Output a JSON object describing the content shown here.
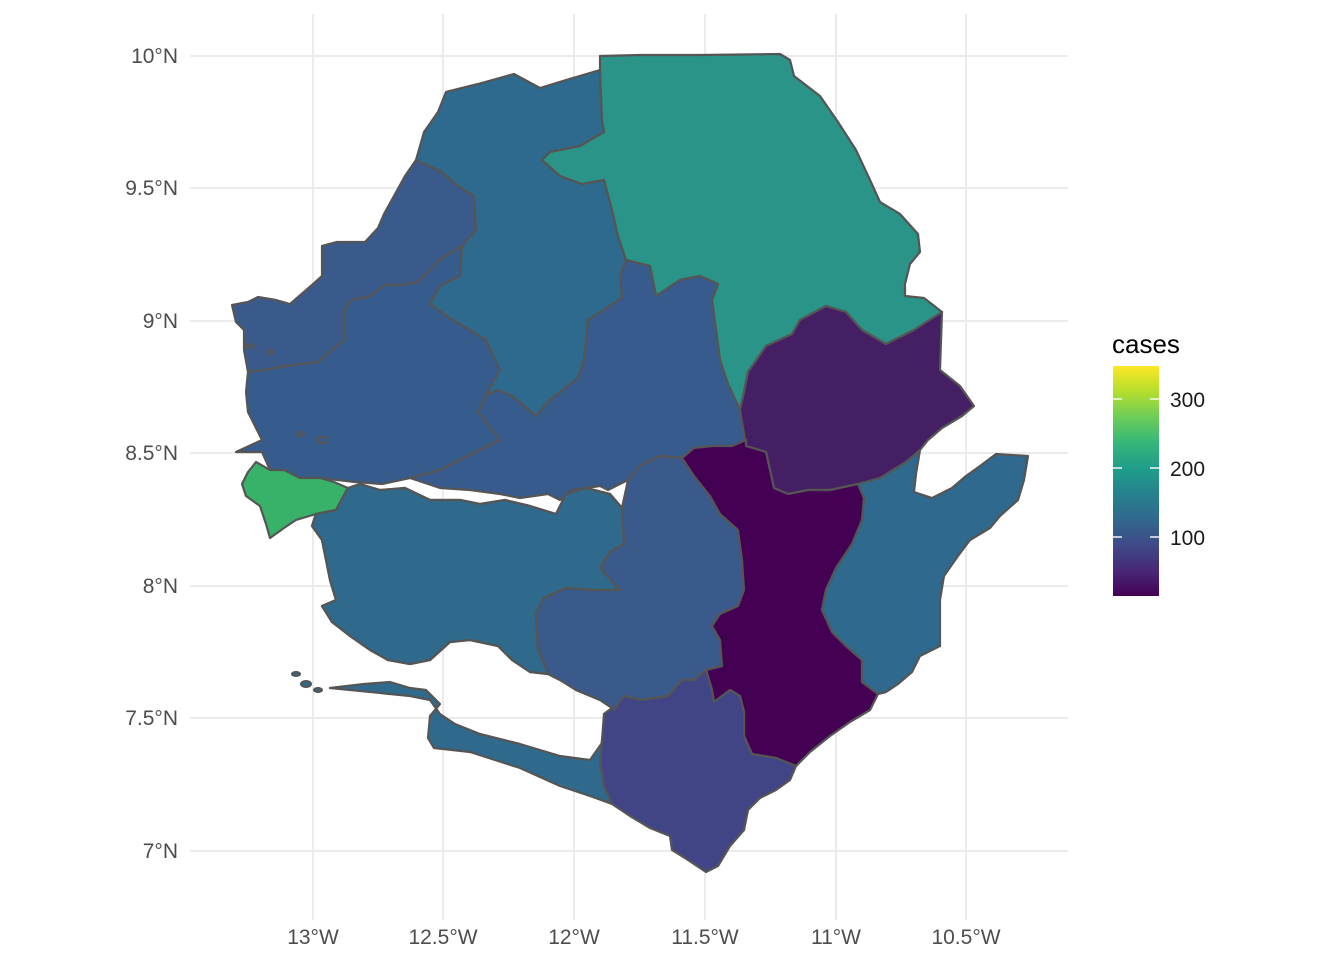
{
  "map": {
    "x_ticks": [
      "13°W",
      "12.5°W",
      "12°W",
      "11.5°W",
      "11°W",
      "10.5°W"
    ],
    "y_ticks": [
      "10°N",
      "9.5°N",
      "9°N",
      "8.5°N",
      "8°N",
      "7.5°N",
      "7°N"
    ]
  },
  "legend": {
    "title": "cases",
    "labels": [
      "300",
      "200",
      "100"
    ],
    "colors": [
      "#440154",
      "#482878",
      "#3E4A89",
      "#31688E",
      "#26828E",
      "#1F9E89",
      "#35B779",
      "#6DCD59",
      "#B4DE2C",
      "#FDE725"
    ]
  },
  "districts": [
    {
      "id": "kambia",
      "fill": "#3B5A8C"
    },
    {
      "id": "port-loko",
      "fill": "#365C8D"
    },
    {
      "id": "bombali",
      "fill": "#2E6A8D"
    },
    {
      "id": "koinadugu",
      "fill": "#2A9489"
    },
    {
      "id": "tonkolili",
      "fill": "#375B8D"
    },
    {
      "id": "kono",
      "fill": "#451F64"
    },
    {
      "id": "western-urban",
      "fill": "#38B268"
    },
    {
      "id": "western-rural",
      "fill": "#FDE725"
    },
    {
      "id": "moyamba",
      "fill": "#2F6A8D"
    },
    {
      "id": "bo",
      "fill": "#3A5A8C"
    },
    {
      "id": "kenema",
      "fill": "#440154"
    },
    {
      "id": "kailahun",
      "fill": "#2F698E"
    },
    {
      "id": "pujehun",
      "fill": "#424585"
    }
  ]
}
